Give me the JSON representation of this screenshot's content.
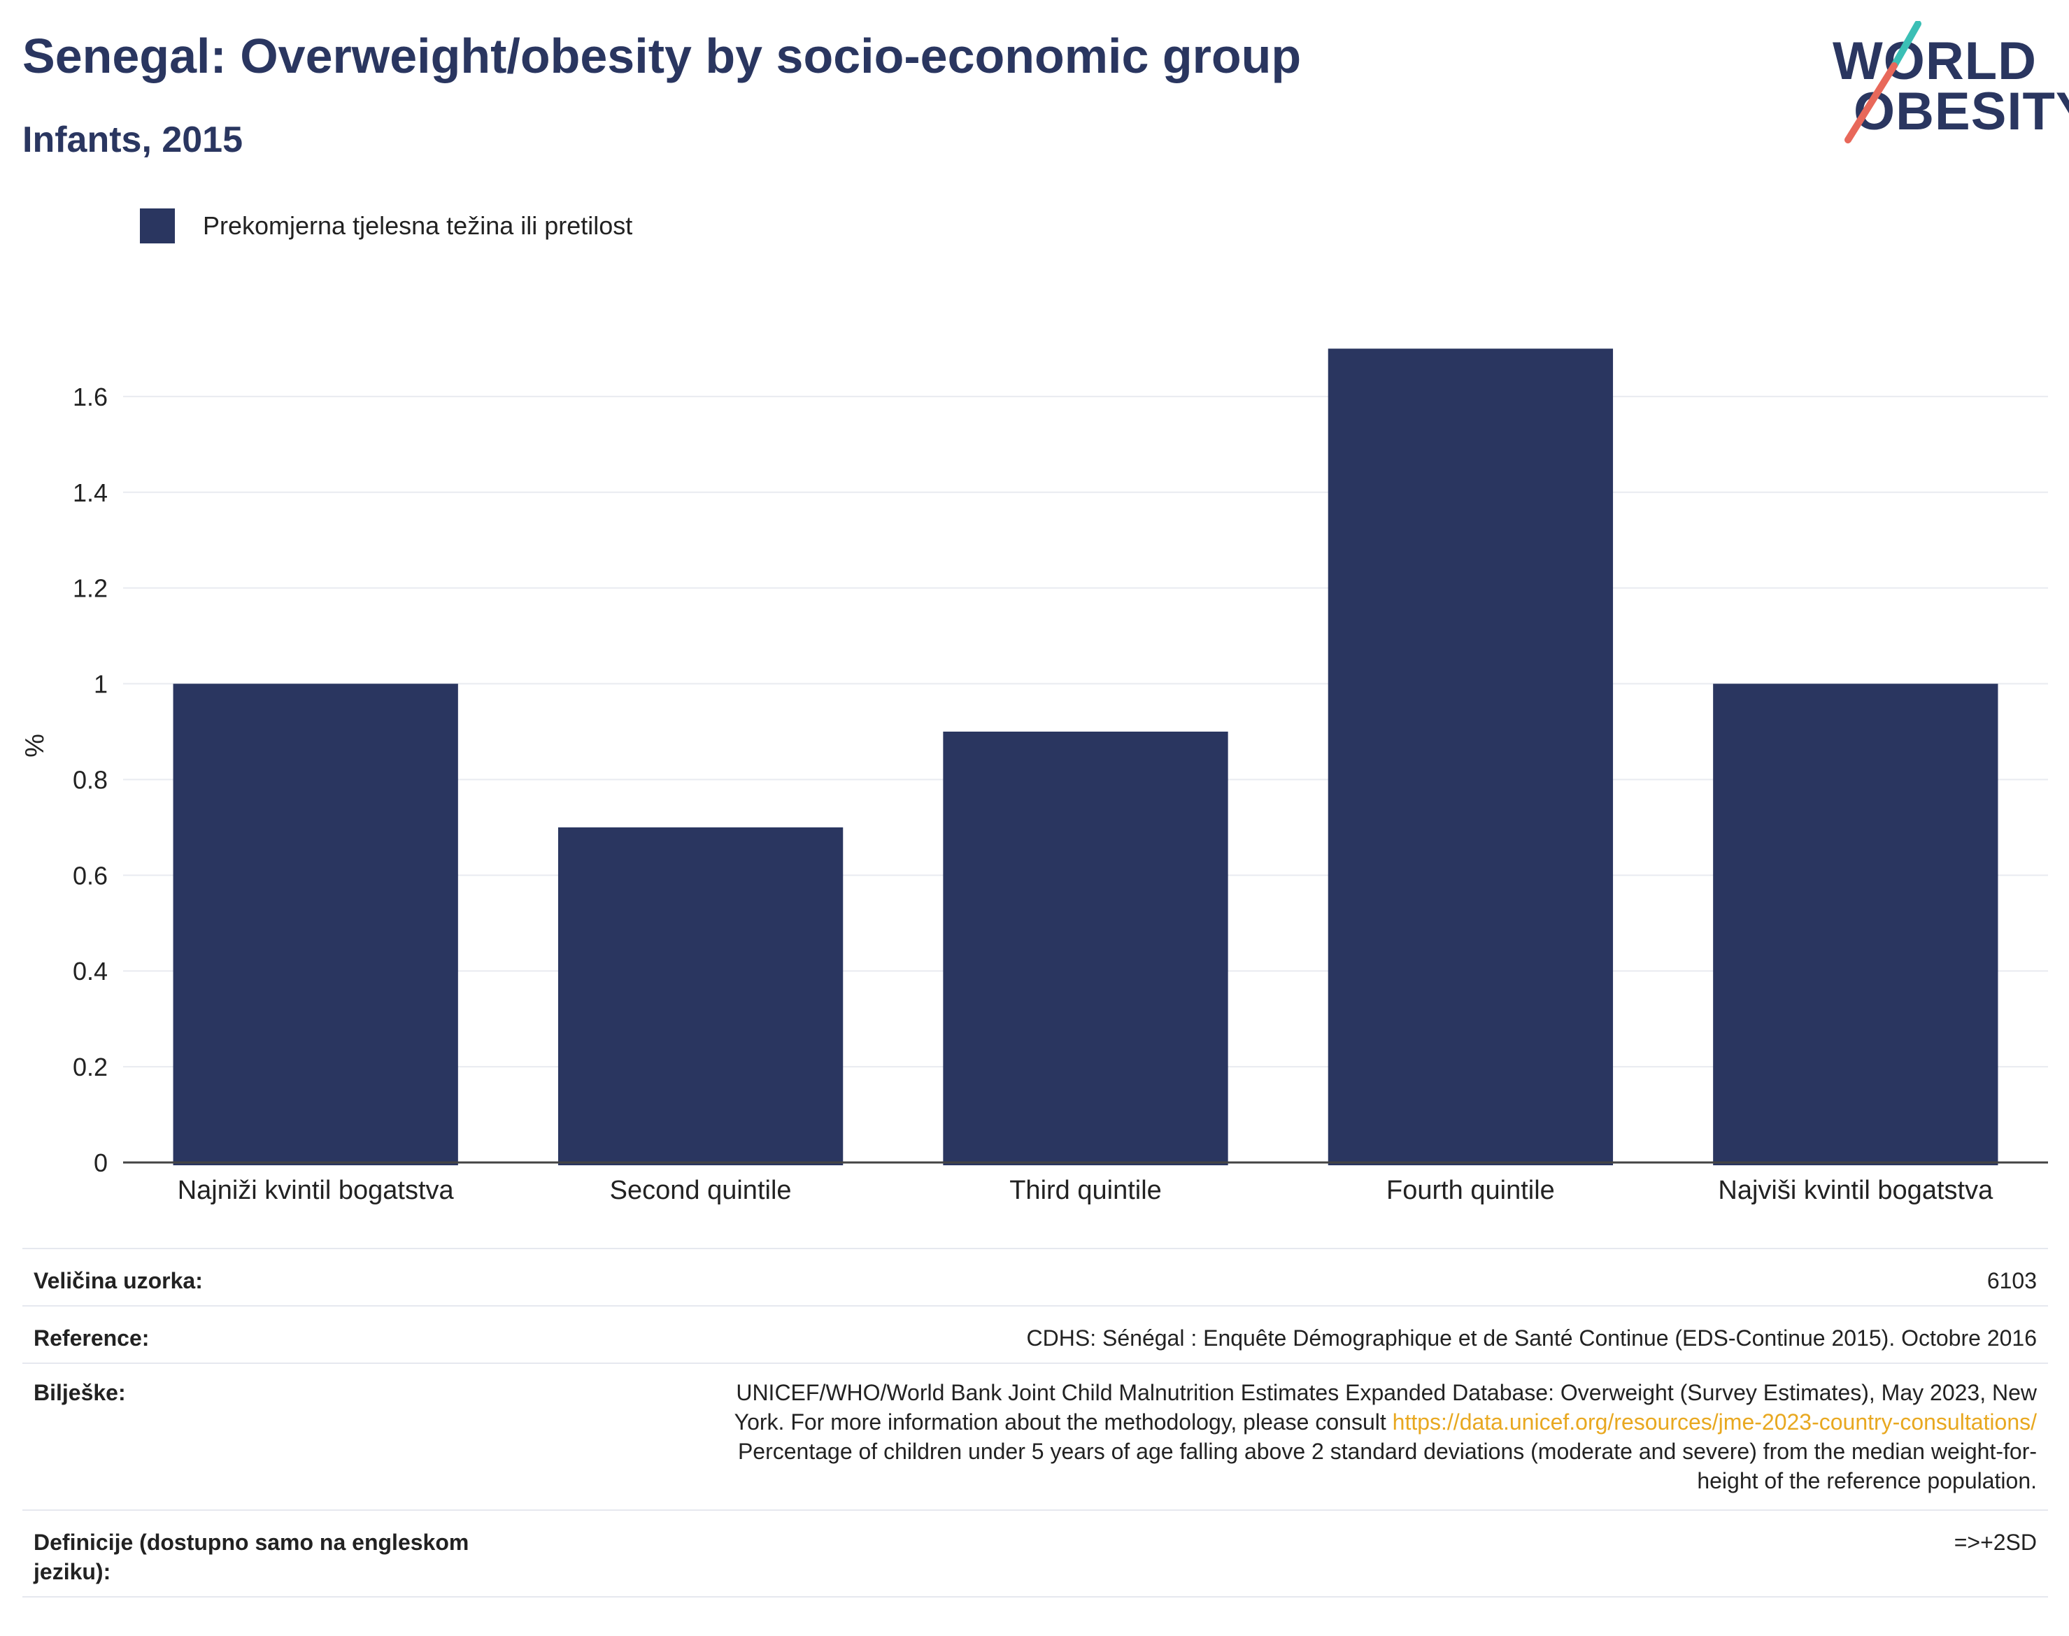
{
  "title": "Senegal: Overweight/obesity by socio-economic group",
  "subtitle": "Infants, 2015",
  "logo": {
    "line1": "WORLD",
    "line2": "OBESITY",
    "accent_colors": [
      "#3bbfb5",
      "#e8685a"
    ]
  },
  "legend": {
    "label": "Prekomjerna tjelesna težina ili pretilost",
    "color": "#2a3660"
  },
  "chart_data": {
    "type": "bar",
    "categories": [
      "Najniži kvintil bogatstva",
      "Second quintile",
      "Third quintile",
      "Fourth quintile",
      "Najviši kvintil bogatstva"
    ],
    "series": [
      {
        "name": "Prekomjerna tjelesna težina ili pretilost",
        "values": [
          1.0,
          0.7,
          0.9,
          1.7,
          1.0
        ],
        "color": "#2a3660"
      }
    ],
    "ylabel": "%",
    "ylim": [
      0,
      1.8
    ],
    "yticks": [
      0,
      0.2,
      0.4,
      0.6,
      0.8,
      1,
      1.2,
      1.4,
      1.6
    ],
    "ytick_labels": [
      "0",
      "0.2",
      "0.4",
      "0.6",
      "0.8",
      "1",
      "1.2",
      "1.4",
      "1.6"
    ],
    "grid": true,
    "legend_position": "top-left"
  },
  "info": {
    "sample_size_label": "Veličina uzorka:",
    "sample_size_value": "6103",
    "reference_label": "Reference:",
    "reference_value": "CDHS: Sénégal : Enquête Démographique et de Santé Continue (EDS-Continue 2015). Octobre 2016",
    "notes_label": "Bilješke:",
    "notes_line1": "UNICEF/WHO/World Bank Joint Child Malnutrition Estimates Expanded Database: Overweight (Survey Estimates), May 2023, New",
    "notes_line2_prefix": "York. For more information about the methodology, please consult ",
    "notes_link": "https://data.unicef.org/resources/jme-2023-country-consultations/",
    "notes_line3": "Percentage of children under 5 years of age falling above 2 standard deviations (moderate and severe) from the median weight-for-",
    "notes_line4": "height of the reference population.",
    "definitions_label_line1": "Definicije (dostupno samo na engleskom",
    "definitions_label_line2": "jeziku):",
    "definitions_value": "=>+2SD"
  }
}
